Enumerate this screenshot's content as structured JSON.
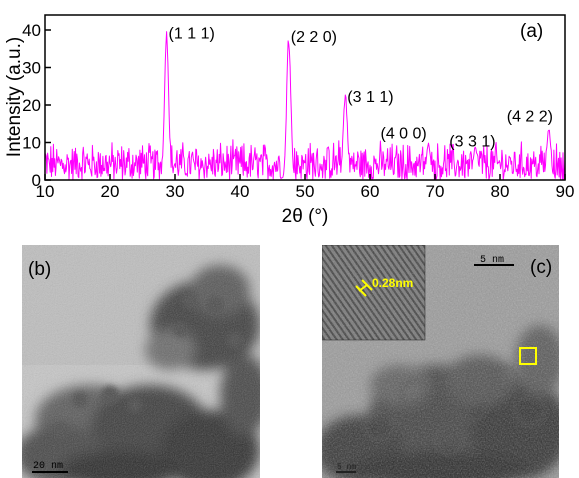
{
  "chart_data": {
    "type": "line",
    "panel_label": "(a)",
    "xlabel": "2θ (°)",
    "ylabel": "Intensity (a.u.)",
    "xlim": [
      10,
      90
    ],
    "ylim": [
      0,
      44
    ],
    "x_ticks": [
      10,
      20,
      30,
      40,
      50,
      60,
      70,
      80,
      90
    ],
    "y_ticks": [
      0,
      10,
      20,
      30,
      40
    ],
    "line_color": "#ff00ff",
    "grid": false,
    "baseline_noise_max": 11,
    "peaks": [
      {
        "label": "(1 1 1)",
        "x": 28.7,
        "y": 41
      },
      {
        "label": "(2 2 0)",
        "x": 47.5,
        "y": 40
      },
      {
        "label": "(3 1 1)",
        "x": 56.2,
        "y": 24
      },
      {
        "label": "(4 0 0)",
        "x": 69.0,
        "y": 10
      },
      {
        "label": "(3 3 1)",
        "x": 76.2,
        "y": 9
      },
      {
        "label": "(4 2 2)",
        "x": 87.5,
        "y": 14
      }
    ]
  },
  "panel_b": {
    "label": "(b)",
    "scale_bar": "20 nm"
  },
  "panel_c": {
    "label": "(c)",
    "scale_bar_main": "5 nm",
    "scale_bar_corner": "5 nm",
    "lattice_spacing": "0.28nm",
    "highlight_color": "#ffff00"
  }
}
